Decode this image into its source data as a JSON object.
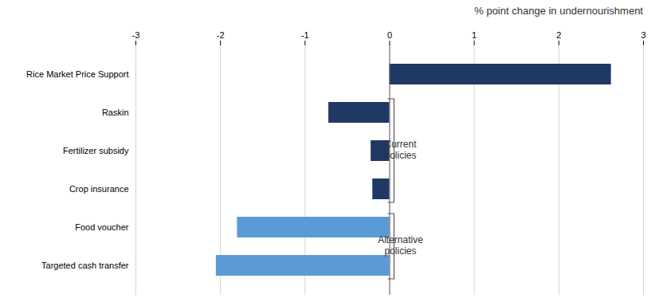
{
  "chart_data": {
    "type": "bar",
    "orientation": "horizontal",
    "title": "% point change in undernourishment",
    "categories": [
      "Targeted cash transfer",
      "Food voucher",
      "Crop insurance",
      "Fertilizer subsidy",
      "Raskin",
      "Rice Market Price Support"
    ],
    "values": [
      -2.05,
      -1.8,
      -0.2,
      -0.22,
      -0.72,
      2.62
    ],
    "colors": [
      "#5b9bd5",
      "#5b9bd5",
      "#1f3864",
      "#1f3864",
      "#1f3864",
      "#1f3864"
    ],
    "xlim": [
      -3,
      3
    ],
    "xticks": [
      -3,
      -2,
      -1,
      0,
      1,
      2,
      3
    ],
    "grid": true,
    "annotations": [
      {
        "text": "Current\npolicies",
        "categories": [
          "Crop insurance",
          "Raskin"
        ]
      },
      {
        "text": "Alternative\npolicies",
        "categories": [
          "Targeted cash transfer",
          "Food voucher"
        ]
      }
    ]
  }
}
